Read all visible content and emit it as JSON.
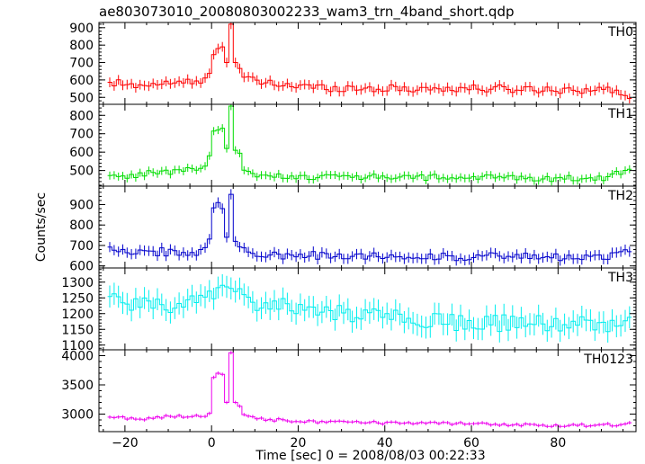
{
  "chart_data": {
    "type": "line",
    "title": "ae803073010_20080803002233_wam3_trn_4band_short.qdp",
    "xlabel": "Time [sec] 0 = 2008/08/03 00:22:33",
    "ylabel": "Counts/sec",
    "xlim": [
      -26,
      98
    ],
    "x_ticks": [
      -20,
      0,
      20,
      40,
      60,
      80
    ],
    "x_tick_labels": [
      "−20",
      "0",
      "20",
      "40",
      "60",
      "80"
    ],
    "bin_width": 1,
    "grid": false,
    "panels": [
      {
        "name": "TH0",
        "color": "#ff0000",
        "ylim": [
          460,
          930
        ],
        "y_ticks": [
          500,
          600,
          700,
          800,
          900
        ],
        "error": 28,
        "anchors": [
          [
            -24,
            570
          ],
          [
            -22,
            585
          ],
          [
            -20,
            560
          ],
          [
            -18,
            575
          ],
          [
            -16,
            570
          ],
          [
            -14,
            580
          ],
          [
            -12,
            575
          ],
          [
            -10,
            590
          ],
          [
            -8,
            575
          ],
          [
            -6,
            590
          ],
          [
            -4,
            580
          ],
          [
            -2,
            600
          ],
          [
            -1,
            620
          ],
          [
            0,
            760
          ],
          [
            1,
            780
          ],
          [
            2,
            790
          ],
          [
            3,
            700
          ],
          [
            4,
            920
          ],
          [
            5,
            700
          ],
          [
            6,
            660
          ],
          [
            7,
            610
          ],
          [
            8,
            600
          ],
          [
            10,
            590
          ],
          [
            14,
            575
          ],
          [
            18,
            570
          ],
          [
            22,
            560
          ],
          [
            26,
            555
          ],
          [
            30,
            555
          ],
          [
            40,
            550
          ],
          [
            50,
            550
          ],
          [
            60,
            550
          ],
          [
            70,
            548
          ],
          [
            80,
            545
          ],
          [
            90,
            545
          ],
          [
            96,
            510
          ]
        ]
      },
      {
        "name": "TH1",
        "color": "#00dd00",
        "ylim": [
          415,
          860
        ],
        "y_ticks": [
          500,
          600,
          700,
          800
        ],
        "error": 22,
        "anchors": [
          [
            -24,
            465
          ],
          [
            -20,
            470
          ],
          [
            -16,
            485
          ],
          [
            -12,
            490
          ],
          [
            -8,
            495
          ],
          [
            -6,
            510
          ],
          [
            -4,
            505
          ],
          [
            -2,
            520
          ],
          [
            -1,
            580
          ],
          [
            0,
            700
          ],
          [
            1,
            720
          ],
          [
            2,
            730
          ],
          [
            3,
            620
          ],
          [
            4,
            850
          ],
          [
            5,
            610
          ],
          [
            6,
            580
          ],
          [
            7,
            510
          ],
          [
            8,
            480
          ],
          [
            10,
            470
          ],
          [
            20,
            468
          ],
          [
            30,
            465
          ],
          [
            40,
            465
          ],
          [
            50,
            462
          ],
          [
            60,
            462
          ],
          [
            70,
            460
          ],
          [
            80,
            458
          ],
          [
            90,
            460
          ],
          [
            96,
            500
          ]
        ]
      },
      {
        "name": "TH2",
        "color": "#0000cc",
        "ylim": [
          590,
          990
        ],
        "y_ticks": [
          600,
          700,
          800,
          900
        ],
        "error": 25,
        "anchors": [
          [
            -24,
            690
          ],
          [
            -20,
            680
          ],
          [
            -16,
            665
          ],
          [
            -12,
            670
          ],
          [
            -8,
            660
          ],
          [
            -4,
            670
          ],
          [
            -2,
            690
          ],
          [
            -1,
            720
          ],
          [
            0,
            870
          ],
          [
            1,
            910
          ],
          [
            2,
            880
          ],
          [
            3,
            740
          ],
          [
            4,
            950
          ],
          [
            5,
            720
          ],
          [
            6,
            690
          ],
          [
            7,
            670
          ],
          [
            10,
            660
          ],
          [
            20,
            650
          ],
          [
            30,
            650
          ],
          [
            40,
            650
          ],
          [
            50,
            645
          ],
          [
            60,
            645
          ],
          [
            70,
            645
          ],
          [
            80,
            640
          ],
          [
            90,
            640
          ],
          [
            96,
            680
          ]
        ]
      },
      {
        "name": "TH3",
        "color": "#00eeee",
        "ylim": [
          1085,
          1345
        ],
        "y_ticks": [
          1100,
          1150,
          1200,
          1250,
          1300
        ],
        "error": 35,
        "anchors": [
          [
            -24,
            1260
          ],
          [
            -20,
            1220
          ],
          [
            -16,
            1230
          ],
          [
            -12,
            1220
          ],
          [
            -8,
            1240
          ],
          [
            -4,
            1240
          ],
          [
            0,
            1275
          ],
          [
            2,
            1290
          ],
          [
            4,
            1280
          ],
          [
            6,
            1260
          ],
          [
            10,
            1230
          ],
          [
            20,
            1215
          ],
          [
            30,
            1200
          ],
          [
            40,
            1195
          ],
          [
            50,
            1180
          ],
          [
            60,
            1170
          ],
          [
            70,
            1170
          ],
          [
            80,
            1165
          ],
          [
            90,
            1165
          ],
          [
            96,
            1170
          ]
        ]
      },
      {
        "name": "TH0123",
        "color": "#ee00ee",
        "ylim": [
          2700,
          4100
        ],
        "y_ticks": [
          3000,
          3500,
          4000
        ],
        "error": 30,
        "anchors": [
          [
            -24,
            2960
          ],
          [
            -20,
            2930
          ],
          [
            -16,
            2920
          ],
          [
            -12,
            2950
          ],
          [
            -8,
            2960
          ],
          [
            -4,
            2980
          ],
          [
            -2,
            2960
          ],
          [
            -1,
            3000
          ],
          [
            0,
            3650
          ],
          [
            1,
            3700
          ],
          [
            2,
            3680
          ],
          [
            3,
            3200
          ],
          [
            4,
            4050
          ],
          [
            5,
            3200
          ],
          [
            6,
            3150
          ],
          [
            7,
            3000
          ],
          [
            8,
            2950
          ],
          [
            10,
            2920
          ],
          [
            20,
            2880
          ],
          [
            30,
            2860
          ],
          [
            40,
            2850
          ],
          [
            50,
            2840
          ],
          [
            60,
            2830
          ],
          [
            70,
            2820
          ],
          [
            80,
            2810
          ],
          [
            90,
            2810
          ],
          [
            96,
            2830
          ]
        ]
      }
    ]
  }
}
